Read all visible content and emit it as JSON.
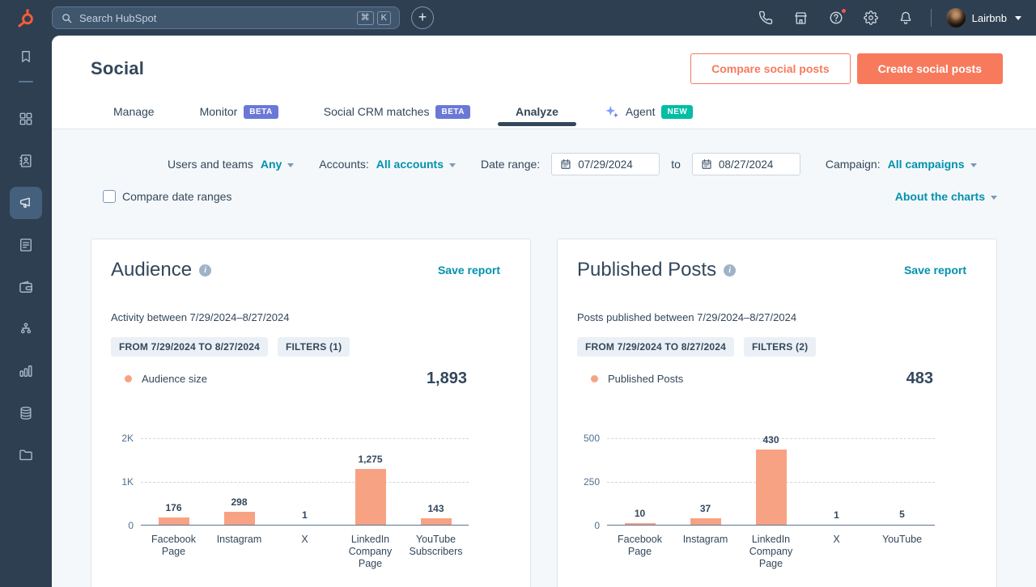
{
  "topbar": {
    "search_placeholder": "Search HubSpot",
    "shortcut_keys": [
      "⌘",
      "K"
    ],
    "user_name": "Lairbnb",
    "icons": [
      "calls",
      "marketplace",
      "help",
      "settings",
      "notifications"
    ]
  },
  "sidebar": {
    "items": [
      "bookmarks",
      "workspaces",
      "crm",
      "marketing",
      "content",
      "commerce",
      "automations",
      "reporting",
      "data-management",
      "library"
    ],
    "active_item": "marketing"
  },
  "header": {
    "title": "Social",
    "compare_button": "Compare social posts",
    "create_button": "Create social posts",
    "tabs": [
      {
        "label": "Manage"
      },
      {
        "label": "Monitor",
        "badge": "BETA"
      },
      {
        "label": "Social CRM matches",
        "badge": "BETA"
      },
      {
        "label": "Analyze",
        "active": true
      },
      {
        "label": "Agent",
        "badge": "NEW",
        "icon": "sparkle"
      }
    ]
  },
  "filters": {
    "users_teams_label": "Users and teams",
    "users_teams_value": "Any",
    "accounts_label": "Accounts:",
    "accounts_value": "All accounts",
    "date_range_label": "Date range:",
    "date_from": "07/29/2024",
    "to_word": "to",
    "date_to": "08/27/2024",
    "campaign_label": "Campaign:",
    "campaign_value": "All campaigns",
    "compare_checkbox_label": "Compare date ranges",
    "about_charts": "About the charts"
  },
  "cards": [
    {
      "title": "Audience",
      "save_report": "Save report",
      "subtitle": "Activity between 7/29/2024–8/27/2024",
      "tags": [
        "FROM 7/29/2024 TO 8/27/2024",
        "FILTERS (1)"
      ],
      "legend": "Audience size",
      "total": "1,893"
    },
    {
      "title": "Published Posts",
      "save_report": "Save report",
      "subtitle": "Posts published between 7/29/2024–8/27/2024",
      "tags": [
        "FROM 7/29/2024 TO 8/27/2024",
        "FILTERS (2)"
      ],
      "legend": "Published Posts",
      "total": "483"
    }
  ],
  "chart_data": [
    {
      "type": "bar",
      "title": "Audience",
      "legend": "Audience size",
      "categories": [
        "Facebook Page",
        "Instagram",
        "X",
        "LinkedIn Company Page",
        "YouTube Subscribers"
      ],
      "values": [
        176,
        298,
        1,
        1275,
        143
      ],
      "value_labels": [
        "176",
        "298",
        "1",
        "1,275",
        "143"
      ],
      "total": 1893,
      "ylim": [
        0,
        2000
      ],
      "yticks": [
        {
          "v": 0,
          "label": "0"
        },
        {
          "v": 1000,
          "label": "1K"
        },
        {
          "v": 2000,
          "label": "2K"
        }
      ],
      "bar_color": "#f8a284",
      "grid": "dashed horizontal"
    },
    {
      "type": "bar",
      "title": "Published Posts",
      "legend": "Published Posts",
      "categories": [
        "Facebook Page",
        "Instagram",
        "LinkedIn Company Page",
        "X",
        "YouTube"
      ],
      "values": [
        10,
        37,
        430,
        1,
        5
      ],
      "value_labels": [
        "10",
        "37",
        "430",
        "1",
        "5"
      ],
      "total": 483,
      "ylim": [
        0,
        500
      ],
      "yticks": [
        {
          "v": 0,
          "label": "0"
        },
        {
          "v": 250,
          "label": "250"
        },
        {
          "v": 500,
          "label": "500"
        }
      ],
      "bar_color": "#f8a284",
      "grid": "dashed horizontal"
    }
  ],
  "colors": {
    "topbar_bg": "#2e3f51",
    "page_bg": "#f5f8fa",
    "link_teal": "#0091ae",
    "cta_orange": "#f87a5d",
    "bar_coral": "#f8a284",
    "text_dark": "#33475b",
    "badge_beta": "#6a78d6",
    "badge_new": "#00bda5",
    "notification_red": "#f2545b"
  }
}
